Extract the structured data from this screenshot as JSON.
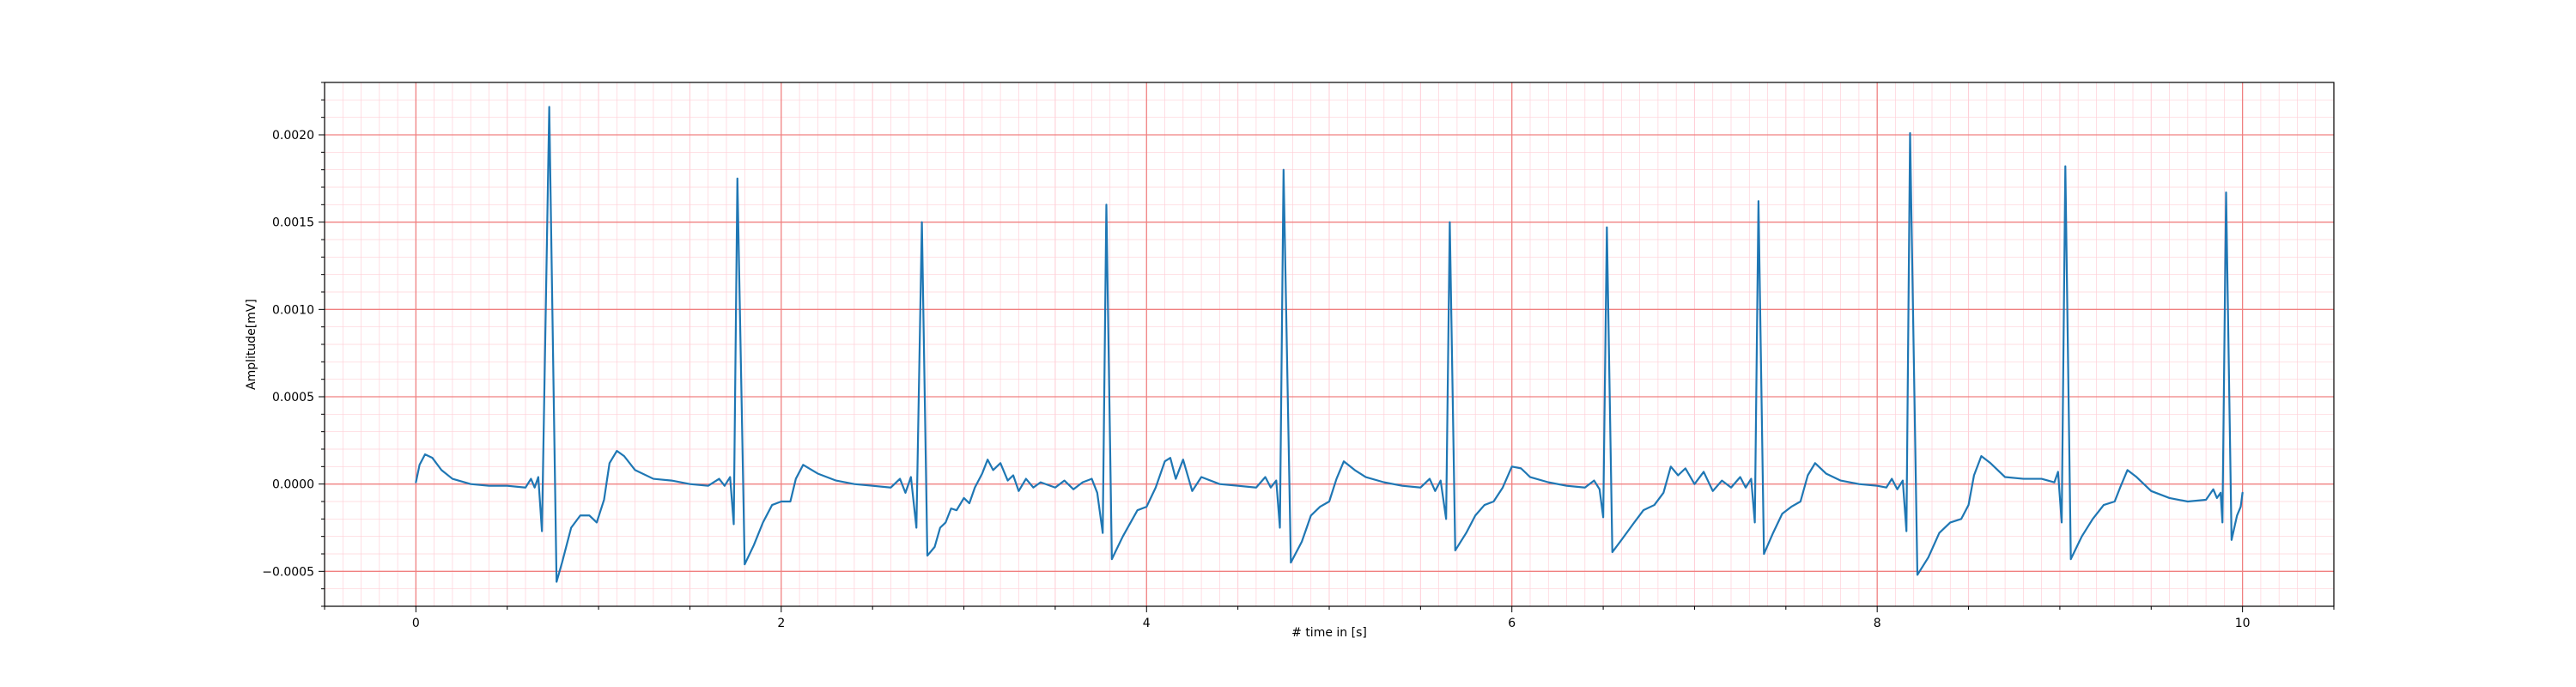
{
  "chart_data": {
    "type": "line",
    "xlabel": "# time in [s]",
    "ylabel": "Amplitude[mV]",
    "xlim": [
      -0.5,
      10.5
    ],
    "ylim": [
      -0.0007,
      0.0023
    ],
    "x_ticks": [
      0,
      2,
      4,
      6,
      8,
      10
    ],
    "x_tick_labels": [
      "0",
      "2",
      "4",
      "6",
      "8",
      "10"
    ],
    "y_ticks": [
      -0.0005,
      0.0,
      0.0005,
      0.001,
      0.0015,
      0.002
    ],
    "y_tick_labels": [
      "−0.0005",
      "0.0000",
      "0.0005",
      "0.0010",
      "0.0015",
      "0.0020"
    ],
    "grid": "major and minor (ECG paper style)",
    "colors": {
      "line": "#1f77b4",
      "major_grid": "#f08080",
      "minor_grid": "#ffd0d8",
      "axes": "#000000"
    },
    "series": [
      {
        "points": [
          [
            0.0,
            1e-05
          ],
          [
            0.02,
            0.00011
          ],
          [
            0.05,
            0.00017
          ],
          [
            0.09,
            0.00015
          ],
          [
            0.14,
            8e-05
          ],
          [
            0.2,
            3e-05
          ],
          [
            0.3,
            0.0
          ],
          [
            0.4,
            -1e-05
          ],
          [
            0.5,
            -1e-05
          ],
          [
            0.6,
            -2e-05
          ],
          [
            0.63,
            3e-05
          ],
          [
            0.65,
            -2e-05
          ],
          [
            0.67,
            4e-05
          ],
          [
            0.69,
            -0.00027
          ],
          [
            0.73,
            0.00216
          ],
          [
            0.77,
            -0.00056
          ],
          [
            0.8,
            -0.00045
          ],
          [
            0.85,
            -0.00025
          ],
          [
            0.9,
            -0.00018
          ],
          [
            0.95,
            -0.00018
          ],
          [
            0.99,
            -0.00022
          ],
          [
            1.03,
            -9e-05
          ],
          [
            1.06,
            0.00012
          ],
          [
            1.1,
            0.00019
          ],
          [
            1.14,
            0.00016
          ],
          [
            1.2,
            8e-05
          ],
          [
            1.3,
            3e-05
          ],
          [
            1.4,
            2e-05
          ],
          [
            1.5,
            0.0
          ],
          [
            1.6,
            -1e-05
          ],
          [
            1.66,
            3e-05
          ],
          [
            1.69,
            -1e-05
          ],
          [
            1.72,
            4e-05
          ],
          [
            1.74,
            -0.00023
          ],
          [
            1.76,
            0.00175
          ],
          [
            1.8,
            -0.00046
          ],
          [
            1.85,
            -0.00035
          ],
          [
            1.9,
            -0.00022
          ],
          [
            1.95,
            -0.00012
          ],
          [
            2.0,
            -0.0001
          ],
          [
            2.05,
            -0.0001
          ],
          [
            2.08,
            3e-05
          ],
          [
            2.12,
            0.00011
          ],
          [
            2.2,
            6e-05
          ],
          [
            2.3,
            2e-05
          ],
          [
            2.4,
            0.0
          ],
          [
            2.5,
            -1e-05
          ],
          [
            2.6,
            -2e-05
          ],
          [
            2.65,
            3e-05
          ],
          [
            2.68,
            -5e-05
          ],
          [
            2.71,
            4e-05
          ],
          [
            2.74,
            -0.00025
          ],
          [
            2.77,
            0.0015
          ],
          [
            2.8,
            -0.00041
          ],
          [
            2.84,
            -0.00036
          ],
          [
            2.87,
            -0.00025
          ],
          [
            2.9,
            -0.00022
          ],
          [
            2.93,
            -0.00014
          ],
          [
            2.96,
            -0.00015
          ],
          [
            3.0,
            -8e-05
          ],
          [
            3.03,
            -0.00011
          ],
          [
            3.06,
            -2e-05
          ],
          [
            3.1,
            6e-05
          ],
          [
            3.13,
            0.00014
          ],
          [
            3.16,
            8e-05
          ],
          [
            3.2,
            0.00012
          ],
          [
            3.24,
            2e-05
          ],
          [
            3.27,
            5e-05
          ],
          [
            3.3,
            -4e-05
          ],
          [
            3.34,
            3e-05
          ],
          [
            3.38,
            -2e-05
          ],
          [
            3.42,
            1e-05
          ],
          [
            3.5,
            -2e-05
          ],
          [
            3.55,
            2e-05
          ],
          [
            3.6,
            -3e-05
          ],
          [
            3.65,
            1e-05
          ],
          [
            3.7,
            3e-05
          ],
          [
            3.73,
            -5e-05
          ],
          [
            3.76,
            -0.00028
          ],
          [
            3.78,
            0.0016
          ],
          [
            3.81,
            -0.00043
          ],
          [
            3.87,
            -0.0003
          ],
          [
            3.95,
            -0.00015
          ],
          [
            4.0,
            -0.00013
          ],
          [
            4.05,
            -2e-05
          ],
          [
            4.1,
            0.00013
          ],
          [
            4.13,
            0.00015
          ],
          [
            4.16,
            3e-05
          ],
          [
            4.2,
            0.00014
          ],
          [
            4.25,
            -4e-05
          ],
          [
            4.3,
            4e-05
          ],
          [
            4.4,
            0.0
          ],
          [
            4.5,
            -1e-05
          ],
          [
            4.6,
            -2e-05
          ],
          [
            4.65,
            4e-05
          ],
          [
            4.68,
            -2e-05
          ],
          [
            4.71,
            2e-05
          ],
          [
            4.73,
            -0.00025
          ],
          [
            4.75,
            0.0018
          ],
          [
            4.79,
            -0.00045
          ],
          [
            4.85,
            -0.00033
          ],
          [
            4.9,
            -0.00018
          ],
          [
            4.95,
            -0.00013
          ],
          [
            5.0,
            -0.0001
          ],
          [
            5.04,
            3e-05
          ],
          [
            5.08,
            0.00013
          ],
          [
            5.14,
            8e-05
          ],
          [
            5.2,
            4e-05
          ],
          [
            5.3,
            1e-05
          ],
          [
            5.4,
            -1e-05
          ],
          [
            5.5,
            -2e-05
          ],
          [
            5.55,
            3e-05
          ],
          [
            5.58,
            -4e-05
          ],
          [
            5.61,
            2e-05
          ],
          [
            5.64,
            -0.0002
          ],
          [
            5.66,
            0.0015
          ],
          [
            5.69,
            -0.00038
          ],
          [
            5.75,
            -0.00028
          ],
          [
            5.8,
            -0.00018
          ],
          [
            5.85,
            -0.00012
          ],
          [
            5.9,
            -0.0001
          ],
          [
            5.95,
            -2e-05
          ],
          [
            6.0,
            0.0001
          ],
          [
            6.05,
            9e-05
          ],
          [
            6.1,
            4e-05
          ],
          [
            6.2,
            1e-05
          ],
          [
            6.3,
            -1e-05
          ],
          [
            6.4,
            -2e-05
          ],
          [
            6.45,
            2e-05
          ],
          [
            6.48,
            -3e-05
          ],
          [
            6.5,
            -0.00019
          ],
          [
            6.52,
            0.00147
          ],
          [
            6.55,
            -0.00039
          ],
          [
            6.6,
            -0.00032
          ],
          [
            6.67,
            -0.00022
          ],
          [
            6.72,
            -0.00015
          ],
          [
            6.78,
            -0.00012
          ],
          [
            6.83,
            -5e-05
          ],
          [
            6.87,
            0.0001
          ],
          [
            6.91,
            5e-05
          ],
          [
            6.95,
            9e-05
          ],
          [
            7.0,
            0.0
          ],
          [
            7.05,
            7e-05
          ],
          [
            7.1,
            -4e-05
          ],
          [
            7.15,
            2e-05
          ],
          [
            7.2,
            -2e-05
          ],
          [
            7.25,
            4e-05
          ],
          [
            7.28,
            -2e-05
          ],
          [
            7.31,
            3e-05
          ],
          [
            7.33,
            -0.00022
          ],
          [
            7.35,
            0.00162
          ],
          [
            7.38,
            -0.0004
          ],
          [
            7.43,
            -0.00028
          ],
          [
            7.48,
            -0.00017
          ],
          [
            7.53,
            -0.00013
          ],
          [
            7.58,
            -0.0001
          ],
          [
            7.62,
            5e-05
          ],
          [
            7.66,
            0.00012
          ],
          [
            7.72,
            6e-05
          ],
          [
            7.8,
            2e-05
          ],
          [
            7.9,
            0.0
          ],
          [
            8.0,
            -1e-05
          ],
          [
            8.05,
            -2e-05
          ],
          [
            8.08,
            3e-05
          ],
          [
            8.11,
            -3e-05
          ],
          [
            8.14,
            2e-05
          ],
          [
            8.16,
            -0.00027
          ],
          [
            8.18,
            0.00201
          ],
          [
            8.22,
            -0.00052
          ],
          [
            8.28,
            -0.00042
          ],
          [
            8.34,
            -0.00028
          ],
          [
            8.4,
            -0.00022
          ],
          [
            8.46,
            -0.0002
          ],
          [
            8.5,
            -0.00012
          ],
          [
            8.53,
            5e-05
          ],
          [
            8.57,
            0.00016
          ],
          [
            8.62,
            0.00012
          ],
          [
            8.7,
            4e-05
          ],
          [
            8.8,
            3e-05
          ],
          [
            8.9,
            3e-05
          ],
          [
            8.97,
            1e-05
          ],
          [
            8.99,
            7e-05
          ],
          [
            9.01,
            -0.00022
          ],
          [
            9.03,
            0.00182
          ],
          [
            9.06,
            -0.00043
          ],
          [
            9.12,
            -0.0003
          ],
          [
            9.18,
            -0.0002
          ],
          [
            9.24,
            -0.00012
          ],
          [
            9.3,
            -0.0001
          ],
          [
            9.33,
            -2e-05
          ],
          [
            9.37,
            8e-05
          ],
          [
            9.42,
            4e-05
          ],
          [
            9.5,
            -4e-05
          ],
          [
            9.6,
            -8e-05
          ],
          [
            9.7,
            -0.0001
          ],
          [
            9.8,
            -9e-05
          ],
          [
            9.84,
            -3e-05
          ],
          [
            9.86,
            -8e-05
          ],
          [
            9.88,
            -5e-05
          ],
          [
            9.89,
            -0.00022
          ],
          [
            9.91,
            0.00167
          ],
          [
            9.94,
            -0.00032
          ],
          [
            9.97,
            -0.00018
          ],
          [
            9.99,
            -0.00013
          ],
          [
            10.0,
            -5e-05
          ]
        ]
      }
    ]
  }
}
